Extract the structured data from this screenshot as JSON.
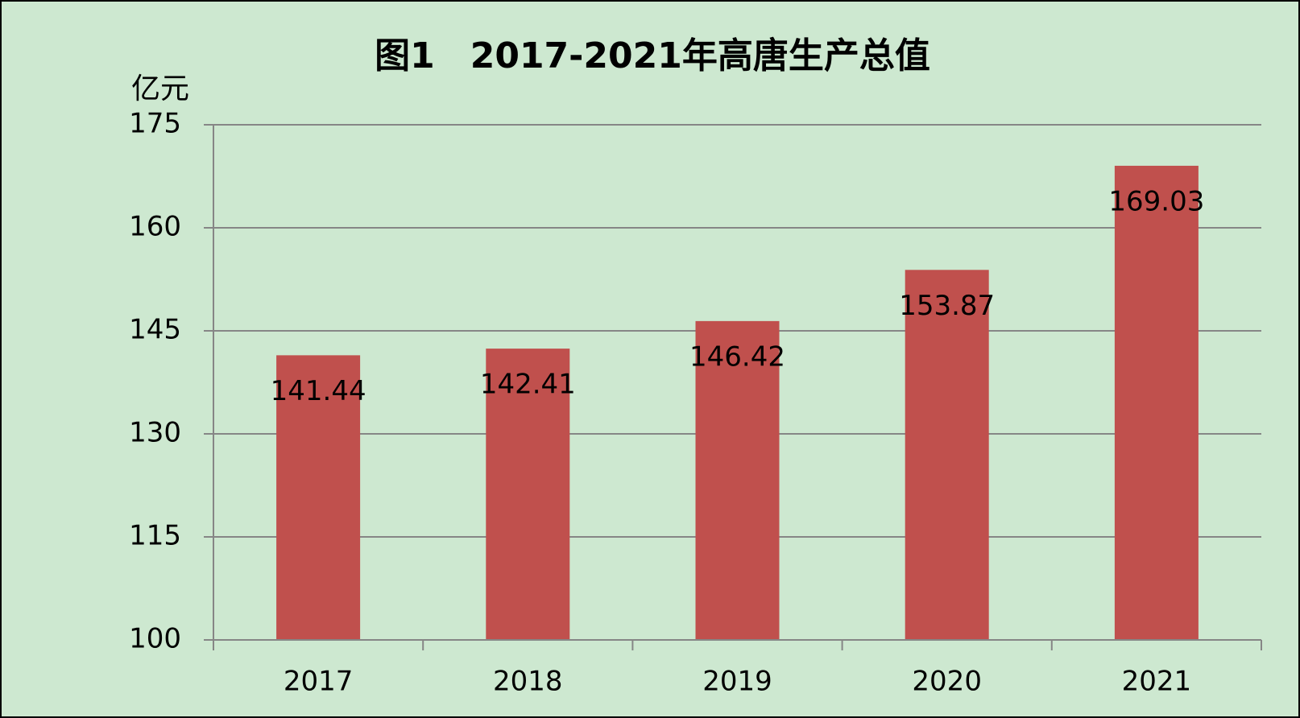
{
  "chart_data": {
    "type": "bar",
    "title": "图1　2017-2021年高唐生产总值",
    "y_label": "亿元",
    "categories": [
      "2017",
      "2018",
      "2019",
      "2020",
      "2021"
    ],
    "values": [
      141.44,
      142.41,
      146.42,
      153.87,
      169.03
    ],
    "color": "#c0504d",
    "ylim": [
      100,
      175
    ],
    "yticks": [
      100,
      115,
      130,
      145,
      160,
      175
    ],
    "grid": true
  }
}
